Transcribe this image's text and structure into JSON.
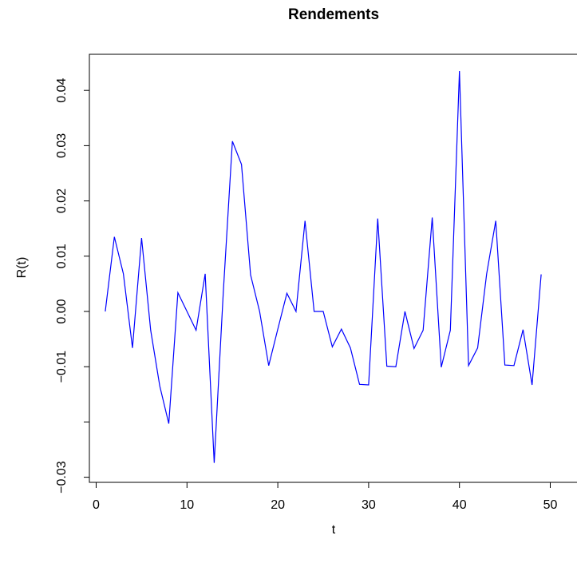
{
  "chart_data": {
    "type": "line",
    "title": "Rendements",
    "xlabel": "t",
    "ylabel": "R(t)",
    "xlim": [
      0,
      50
    ],
    "ylim": [
      -0.03,
      0.045
    ],
    "x_ticks": [
      0,
      10,
      20,
      30,
      40,
      50
    ],
    "x_tick_labels": [
      "0",
      "10",
      "20",
      "30",
      "40",
      "50"
    ],
    "y_ticks": [
      -0.03,
      -0.02,
      -0.01,
      0.0,
      0.01,
      0.02,
      0.03,
      0.04
    ],
    "y_tick_labels": [
      "−0.03",
      "",
      "−0.01",
      "0.00",
      "0.01",
      "0.02",
      "0.03",
      "0.04"
    ],
    "grid": false,
    "line_color": "#0000ff",
    "series": [
      {
        "x": [
          1,
          2,
          3,
          4,
          5,
          6,
          7,
          8,
          9,
          10,
          11,
          12,
          13,
          14,
          15,
          16,
          17,
          18,
          19,
          20,
          21,
          22,
          23,
          24,
          25,
          26,
          27,
          28,
          29,
          30,
          31,
          32,
          33,
          34,
          35,
          36,
          37,
          38,
          39,
          40,
          41,
          42,
          43,
          44,
          45,
          46,
          47,
          48,
          49
        ],
        "values": [
          0.0,
          0.0135,
          0.0068,
          -0.0066,
          0.0133,
          -0.0034,
          -0.0135,
          -0.0203,
          0.0034,
          0.0,
          -0.0034,
          0.0068,
          -0.0274,
          0.0035,
          0.0308,
          0.0266,
          0.0066,
          0.0,
          -0.0098,
          -0.0032,
          0.0033,
          0.0,
          0.0164,
          0.0,
          0.0,
          -0.0064,
          -0.0032,
          -0.0066,
          -0.0132,
          -0.0133,
          0.0168,
          -0.0099,
          -0.01,
          0.0,
          -0.0067,
          -0.0034,
          0.017,
          -0.0101,
          -0.0034,
          0.0435,
          -0.0098,
          -0.0066,
          0.0068,
          0.0164,
          -0.0097,
          -0.0098,
          -0.0033,
          -0.0133,
          0.0067
        ]
      }
    ]
  }
}
